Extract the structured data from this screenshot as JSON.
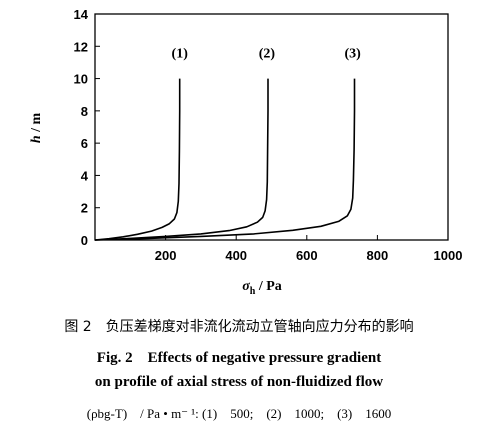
{
  "chart_data": {
    "type": "line",
    "xlabel_symbol": "σ",
    "xlabel_sub": "h",
    "xlabel_unit": " / Pa",
    "ylabel_symbol": "h",
    "ylabel_unit": " / m",
    "xlim": [
      0,
      1000
    ],
    "ylim": [
      0,
      14
    ],
    "xticks": [
      200,
      400,
      600,
      800,
      1000
    ],
    "xtick_labels": [
      "200",
      "400",
      "600",
      "800",
      "1000"
    ],
    "yticks": [
      0,
      2,
      4,
      6,
      8,
      10,
      12,
      14
    ],
    "ytick_labels": [
      "0",
      "2",
      "4",
      "6",
      "8",
      "10",
      "12",
      "14"
    ],
    "grid": false,
    "series": [
      {
        "name": "(1)",
        "label_at": [
          240,
          11.3
        ],
        "x": [
          0,
          40,
          80,
          120,
          160,
          190,
          210,
          225,
          232,
          236,
          238,
          239,
          240,
          240
        ],
        "y": [
          0,
          0.08,
          0.2,
          0.35,
          0.55,
          0.78,
          1.0,
          1.3,
          1.7,
          2.4,
          3.5,
          5.5,
          8,
          10
        ]
      },
      {
        "name": "(2)",
        "label_at": [
          487,
          11.3
        ],
        "x": [
          0,
          100,
          200,
          300,
          380,
          430,
          460,
          475,
          482,
          486,
          488,
          489,
          490,
          490
        ],
        "y": [
          0,
          0.1,
          0.22,
          0.38,
          0.58,
          0.82,
          1.1,
          1.4,
          1.8,
          2.5,
          3.6,
          5.5,
          8,
          10
        ]
      },
      {
        "name": "(3)",
        "label_at": [
          730,
          11.3
        ],
        "x": [
          0,
          150,
          300,
          450,
          560,
          640,
          690,
          715,
          725,
          730,
          732,
          734,
          735,
          735
        ],
        "y": [
          0,
          0.1,
          0.22,
          0.38,
          0.6,
          0.85,
          1.15,
          1.5,
          1.9,
          2.6,
          3.7,
          5.6,
          8,
          10
        ]
      }
    ]
  },
  "caption": {
    "chinese": "图 2　负压差梯度对非流化流动立管轴向应力分布的影响",
    "english_line1": "Fig. 2　Effects of negative pressure gradient",
    "english_line2": "on profile of axial stress of non-fluidized flow",
    "note": "(ρbg-T)　/ Pa • m⁻ ¹: (1)　500;　(2)　1000;　(3)　1600"
  }
}
